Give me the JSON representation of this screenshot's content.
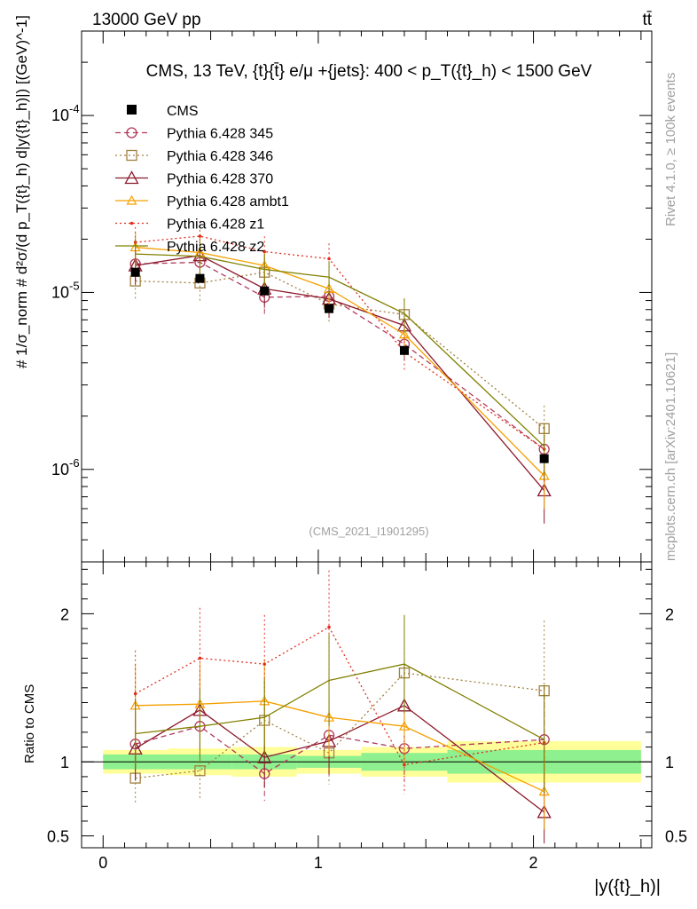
{
  "header": {
    "left": "13000 GeV pp",
    "right": "tt̄"
  },
  "side_labels": {
    "rivet": "Rivet 4.1.0, ≥ 100k events",
    "mcplots": "mcplots.cern.ch [arXiv:2401.10621]"
  },
  "watermark": "(CMS_2021_I1901295)",
  "chart_data": [
    {
      "type": "line",
      "title": "CMS, 13 TeV, {t}{t̄} e/μ +{jets}: 400 <  p_T({t}_h) < 1500 GeV",
      "ylabel": "# 1/σ_norm # d²σ/(d p_T({t}_h) d|y({t}_h)|) [(GeV)^-1]",
      "xlabel": "|y({t}_h)|",
      "yscale": "log",
      "ylim": [
        3e-07,
        0.0003
      ],
      "xlim": [
        -0.1,
        2.55
      ],
      "x": [
        0.15,
        0.45,
        0.75,
        1.05,
        1.4,
        2.05
      ],
      "data": {
        "name": "CMS",
        "values": [
          1.3e-05,
          1.2e-05,
          1.02e-05,
          8.1e-06,
          4.7e-06,
          1.15e-06
        ]
      },
      "series": [
        {
          "name": "Pythia 6.428 345",
          "color": "#b03a5a",
          "marker": "circle",
          "dash": "dashed",
          "values": [
            1.45e-05,
            1.48e-05,
            9.4e-06,
            9.5e-06,
            5.1e-06,
            1.3e-06
          ]
        },
        {
          "name": "Pythia 6.428 346",
          "color": "#a08040",
          "marker": "square",
          "dash": "dotted",
          "values": [
            1.16e-05,
            1.13e-05,
            1.3e-05,
            8.6e-06,
            7.5e-06,
            1.7e-06
          ]
        },
        {
          "name": "Pythia 6.428 370",
          "color": "#8b1a2b",
          "marker": "triangle",
          "dash": "solid",
          "values": [
            1.42e-05,
            1.62e-05,
            1.05e-05,
            9.2e-06,
            6.5e-06,
            7.6e-07
          ]
        },
        {
          "name": "Pythia 6.428 ambt1",
          "color": "#f5a000",
          "marker": "triangle-small",
          "dash": "solid",
          "values": [
            1.8e-05,
            1.68e-05,
            1.42e-05,
            1.05e-05,
            5.8e-06,
            9.2e-07
          ]
        },
        {
          "name": "Pythia 6.428 z1",
          "color": "#e03020",
          "marker": "dot",
          "dash": "dotted",
          "values": [
            1.92e-05,
            2.08e-05,
            1.7e-05,
            1.55e-05,
            4.6e-06,
            1.3e-06
          ]
        },
        {
          "name": "Pythia 6.428 z2",
          "color": "#808000",
          "marker": "none",
          "dash": "solid",
          "values": [
            1.65e-05,
            1.6e-05,
            1.35e-05,
            1.22e-05,
            7.6e-06,
            1.35e-06
          ]
        }
      ],
      "legend_position": "top-left",
      "yticks": [
        "10^-6",
        "10^-5",
        "10^-4"
      ]
    },
    {
      "type": "line",
      "ylabel": "Ratio to CMS",
      "xlabel": "|y({t}_h)|",
      "ylim": [
        0.42,
        2.35
      ],
      "xlim": [
        -0.1,
        2.55
      ],
      "x": [
        0.15,
        0.45,
        0.75,
        1.05,
        1.4,
        2.05
      ],
      "yticks": [
        "0.5",
        "1",
        "2"
      ],
      "xticks": [
        "0",
        "1",
        "2"
      ],
      "series": [
        {
          "name": "Pythia 6.428 345",
          "values": [
            1.12,
            1.24,
            0.92,
            1.18,
            1.09,
            1.15
          ]
        },
        {
          "name": "Pythia 6.428 346",
          "values": [
            0.89,
            0.94,
            1.28,
            1.06,
            1.6,
            1.48
          ]
        },
        {
          "name": "Pythia 6.428 370",
          "values": [
            1.09,
            1.35,
            1.03,
            1.14,
            1.38,
            0.66
          ]
        },
        {
          "name": "Pythia 6.428 ambt1",
          "values": [
            1.38,
            1.39,
            1.41,
            1.3,
            1.24,
            0.8
          ]
        },
        {
          "name": "Pythia 6.428 z1",
          "values": [
            1.46,
            1.7,
            1.66,
            1.91,
            0.98,
            1.13
          ]
        },
        {
          "name": "Pythia 6.428 z2",
          "values": [
            1.19,
            1.24,
            1.3,
            1.55,
            1.66,
            1.15
          ]
        }
      ],
      "bands": {
        "inner_color": "#8ef08e",
        "outer_color": "#ffff99",
        "edges": [
          0,
          0.3,
          0.6,
          0.9,
          1.2,
          1.6,
          2.5
        ],
        "inner": [
          0.05,
          0.05,
          0.05,
          0.04,
          0.06,
          0.08
        ],
        "outer": [
          0.08,
          0.09,
          0.1,
          0.08,
          0.1,
          0.14
        ]
      }
    }
  ]
}
